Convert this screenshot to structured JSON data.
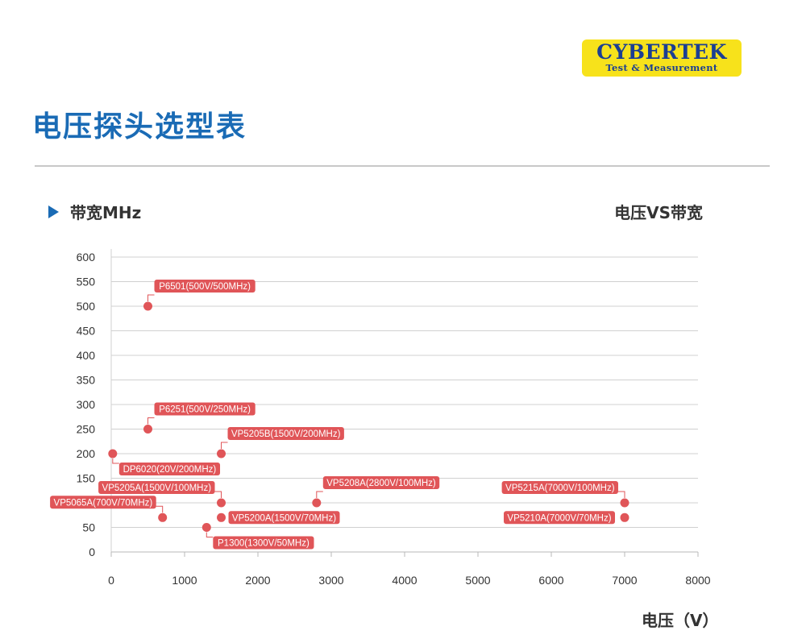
{
  "brand": {
    "name": "CYBERTEK",
    "tagline": "Test & Measurement",
    "color_bg": "#f7e21b",
    "color_text": "#1b3e93"
  },
  "page_title": "电压探头选型表",
  "colors": {
    "title": "#1a6bb5",
    "marker": "#e05558",
    "grid": "#d0d0d0",
    "text": "#333333"
  },
  "chart_data": {
    "type": "scatter",
    "title": "电压VS带宽",
    "xlabel": "电压（V）",
    "ylabel": "带宽MHz",
    "xlim": [
      0,
      8000
    ],
    "ylim": [
      0,
      600
    ],
    "x_ticks": [
      "0",
      "1000",
      "2000",
      "3000",
      "4000",
      "5000",
      "6000",
      "7000",
      "8000"
    ],
    "y_ticks": [
      "0",
      "50",
      "100",
      "150",
      "200",
      "250",
      "300",
      "350",
      "400",
      "450",
      "500",
      "550",
      "600"
    ],
    "grid": true,
    "points": [
      {
        "x": 500,
        "y": 500,
        "label": "P6501(500V/500MHz)",
        "side": "right-up"
      },
      {
        "x": 500,
        "y": 250,
        "label": "P6251(500V/250MHz)",
        "side": "right-up"
      },
      {
        "x": 20,
        "y": 200,
        "label": "DP6020(20V/200MHz)",
        "side": "right-down"
      },
      {
        "x": 1500,
        "y": 200,
        "label": "VP5205B(1500V/200MHz)",
        "side": "right-up"
      },
      {
        "x": 1500,
        "y": 100,
        "label": "VP5205A(1500V/100MHz)",
        "side": "left-up"
      },
      {
        "x": 700,
        "y": 70,
        "label": "VP5065A(700V/70MHz)",
        "side": "left-up"
      },
      {
        "x": 1500,
        "y": 70,
        "label": "VP5200A(1500V/70MHz)",
        "side": "right"
      },
      {
        "x": 1300,
        "y": 50,
        "label": "P1300(1300V/50MHz)",
        "side": "right-down"
      },
      {
        "x": 2800,
        "y": 100,
        "label": "VP5208A(2800V/100MHz)",
        "side": "right-up"
      },
      {
        "x": 7000,
        "y": 100,
        "label": "VP5215A(7000V/100MHz)",
        "side": "left-up"
      },
      {
        "x": 7000,
        "y": 70,
        "label": "VP5210A(7000V/70MHz)",
        "side": "left"
      }
    ]
  }
}
